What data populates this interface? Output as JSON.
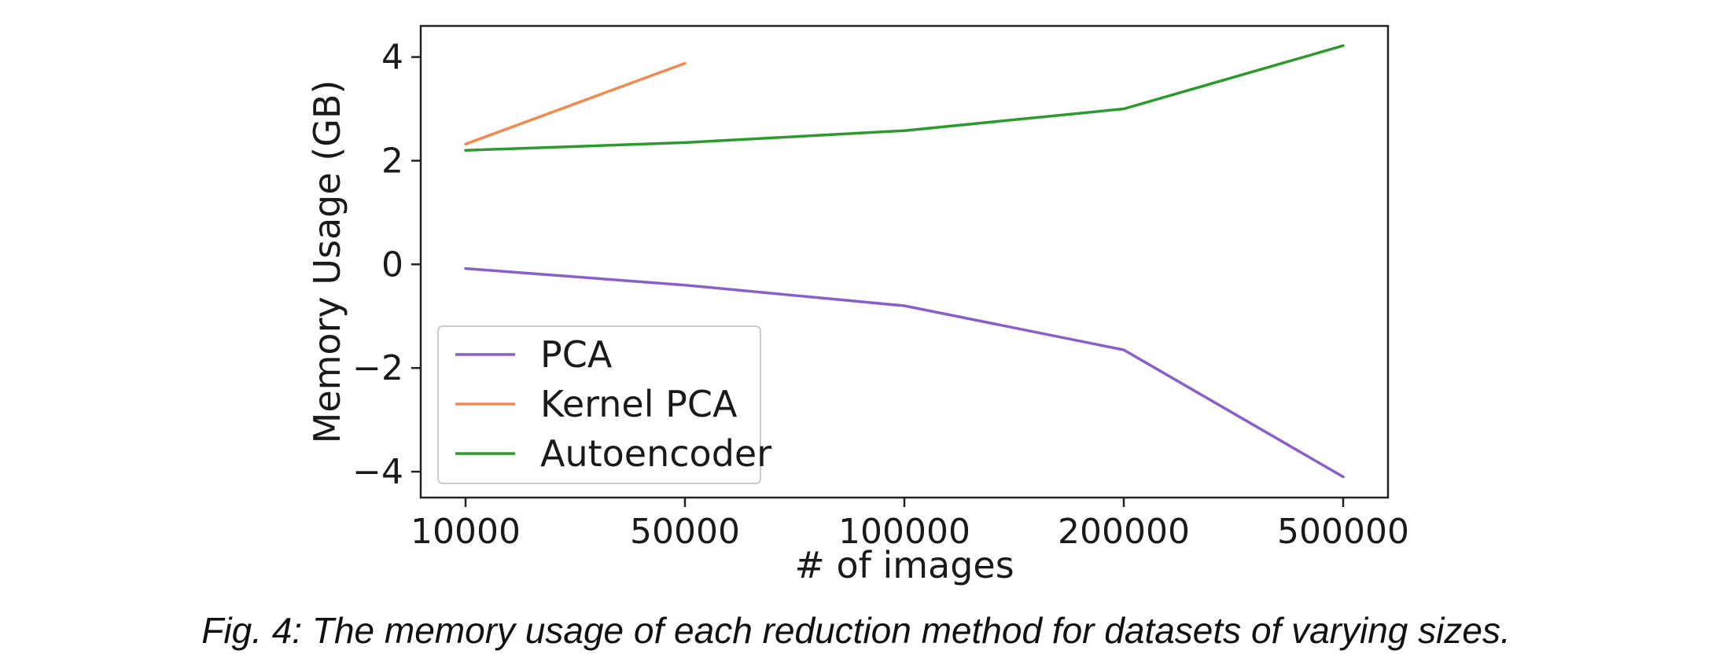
{
  "caption": "Fig. 4: The memory usage of each reduction method for datasets of varying sizes.",
  "chart_data": {
    "type": "line",
    "title": "",
    "xlabel": "# of images",
    "ylabel": "Memory Usage (GB)",
    "categories": [
      "10000",
      "50000",
      "100000",
      "200000",
      "500000"
    ],
    "x_scale": "categorical",
    "ylim": [
      -4.5,
      4.6
    ],
    "yticks": [
      -4,
      -2,
      0,
      2,
      4
    ],
    "ytick_labels": [
      "−4",
      "−2",
      "0",
      "2",
      "4"
    ],
    "grid": false,
    "legend": "lower-left",
    "series": [
      {
        "name": "PCA",
        "color": "#8a5fc9",
        "values": [
          -0.08,
          -0.4,
          -0.8,
          -1.65,
          -4.1
        ]
      },
      {
        "name": "Kernel PCA",
        "color": "#f28a50",
        "values": [
          2.32,
          3.88,
          null,
          null,
          null
        ]
      },
      {
        "name": "Autoencoder",
        "color": "#2c9a2c",
        "values": [
          2.2,
          2.35,
          2.58,
          3.0,
          4.22
        ]
      }
    ]
  }
}
